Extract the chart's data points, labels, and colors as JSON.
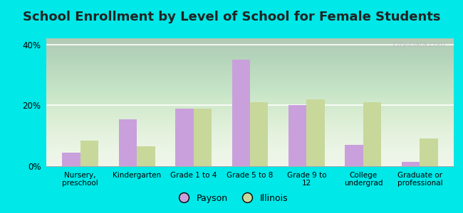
{
  "title": "School Enrollment by Level of School for Female Students",
  "categories": [
    "Nursery,\npreschool",
    "Kindergarten",
    "Grade 1 to 4",
    "Grade 5 to 8",
    "Grade 9 to\n12",
    "College\nundergrad",
    "Graduate or\nprofessional"
  ],
  "payson": [
    4.5,
    15.5,
    19.0,
    35.0,
    20.0,
    7.0,
    1.5
  ],
  "illinois": [
    8.5,
    6.5,
    19.0,
    21.0,
    22.0,
    21.0,
    9.0
  ],
  "payson_color": "#c9a0dc",
  "illinois_color": "#c8d89a",
  "background_outer": "#00e8e8",
  "background_inner": "#f5faf0",
  "ylim": [
    0,
    42
  ],
  "yticks": [
    0,
    20,
    40
  ],
  "ytick_labels": [
    "0%",
    "20%",
    "40%"
  ],
  "bar_width": 0.32,
  "title_fontsize": 13,
  "legend_labels": [
    "Payson",
    "Illinois"
  ],
  "watermark": "City-Data.com"
}
